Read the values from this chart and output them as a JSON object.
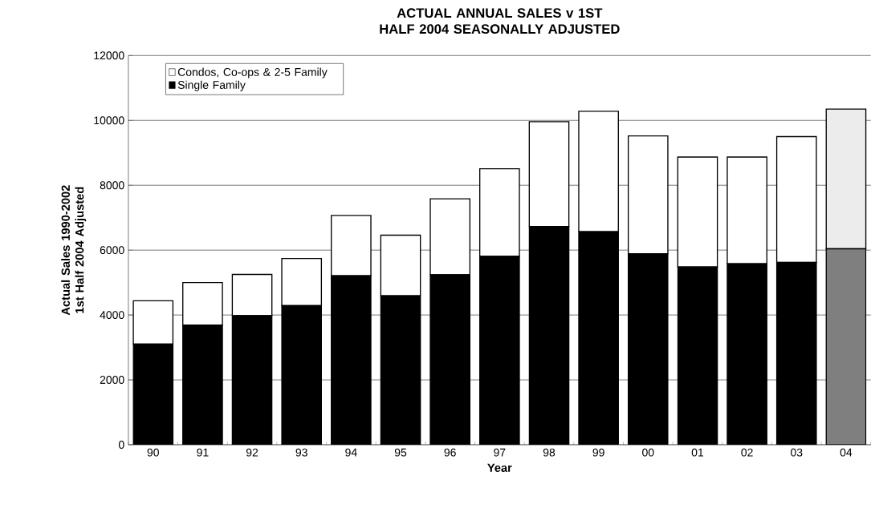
{
  "chart_data": {
    "type": "bar",
    "stacked": true,
    "title": "ACTUAL ANNUAL SALES v 1ST HALF 2004 SEASONALLY ADJUSTED",
    "xlabel": "Year",
    "ylabel": "Actual Sales  1990-2002 1st Half 2004 Adjusted",
    "categories": [
      "90",
      "91",
      "92",
      "93",
      "94",
      "95",
      "96",
      "97",
      "98",
      "99",
      "00",
      "01",
      "02",
      "03",
      "04"
    ],
    "series": [
      {
        "name": "Single Family",
        "color": "#000000",
        "colors": [
          "#000000",
          "#000000",
          "#000000",
          "#000000",
          "#000000",
          "#000000",
          "#000000",
          "#000000",
          "#000000",
          "#000000",
          "#000000",
          "#000000",
          "#000000",
          "#000000",
          "#7f7f7f"
        ],
        "values": [
          3100,
          3690,
          3980,
          4290,
          5210,
          4590,
          5240,
          5810,
          6730,
          6570,
          5890,
          5480,
          5580,
          5620,
          6040
        ]
      },
      {
        "name": "Condos, Co-ops & 2-5 Family",
        "color": "#ffffff",
        "colors": [
          "#ffffff",
          "#ffffff",
          "#ffffff",
          "#ffffff",
          "#ffffff",
          "#ffffff",
          "#ffffff",
          "#ffffff",
          "#ffffff",
          "#ffffff",
          "#ffffff",
          "#ffffff",
          "#ffffff",
          "#ffffff",
          "#ececec"
        ],
        "values": [
          1340,
          1310,
          1270,
          1450,
          1860,
          1870,
          2340,
          2700,
          3230,
          3710,
          3630,
          3390,
          3290,
          3880,
          4310
        ]
      }
    ],
    "ylim": [
      0,
      12000
    ],
    "yticks": [
      0,
      2000,
      4000,
      6000,
      8000,
      10000,
      12000
    ],
    "grid": "y",
    "legend": "top left"
  }
}
